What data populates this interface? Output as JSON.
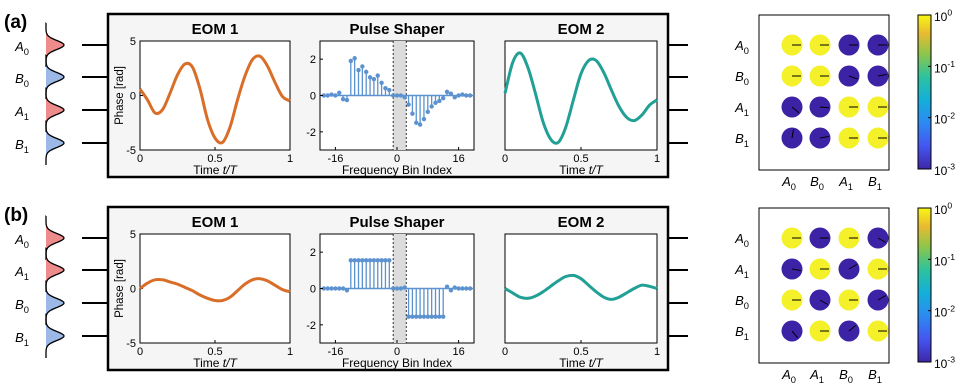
{
  "colors": {
    "eom1": "#D96E28",
    "eom2": "#22A095",
    "shaper": "#5B92CF",
    "pulse_red": "#EE8C8C",
    "pulse_blue": "#9BB8E6",
    "panel_fill": "#F5F5F5",
    "band_fill": "#DCDCDC",
    "dot_high": "#F4F12A",
    "dot_low": "#3C23A6"
  },
  "chart_data": [
    {
      "panel_label": "(a)",
      "pulse_labels": [
        {
          "main": "A",
          "sub": "0"
        },
        {
          "main": "B",
          "sub": "0"
        },
        {
          "main": "A",
          "sub": "1"
        },
        {
          "main": "B",
          "sub": "1"
        }
      ],
      "pulse_colors": [
        "red",
        "blue",
        "red",
        "blue"
      ],
      "eom1": {
        "type": "line",
        "title": "EOM 1",
        "ylabel": "Phase [rad]",
        "xlabel": {
          "main": "Time ",
          "italic": "t/T"
        },
        "xlim": [
          0,
          1
        ],
        "ylim": [
          -5,
          5
        ],
        "xticks": [
          "0",
          "0.5",
          "1"
        ],
        "yticks": [
          "5",
          "0",
          "-5"
        ],
        "x": [
          0,
          0.05,
          0.1,
          0.15,
          0.2,
          0.25,
          0.3,
          0.35,
          0.4,
          0.45,
          0.5,
          0.55,
          0.6,
          0.65,
          0.7,
          0.75,
          0.8,
          0.85,
          0.9,
          0.95,
          1
        ],
        "y": [
          0.6,
          -0.4,
          -1.6,
          -1.3,
          0.2,
          1.9,
          2.9,
          2.6,
          0.6,
          -2.2,
          -3.9,
          -4.3,
          -2.9,
          -0.4,
          1.8,
          3.3,
          3.6,
          2.7,
          1.2,
          -0.1,
          -0.5
        ]
      },
      "shaper": {
        "type": "stem",
        "title": "Pulse Shaper",
        "xlabel": "Frequency Bin Index",
        "xlim": [
          -20,
          20
        ],
        "ylim": [
          -3,
          3
        ],
        "xticks": [
          "-16",
          "0",
          "16"
        ],
        "yticks": [
          "2",
          "0",
          "-2"
        ],
        "band": [
          -1,
          2.4
        ],
        "x": [
          -19,
          -18,
          -17,
          -16,
          -15,
          -14,
          -13,
          -12,
          -11,
          -10,
          -9,
          -8,
          -7,
          -6,
          -5,
          -4,
          -3,
          -2,
          -1,
          0,
          1,
          2,
          3,
          4,
          5,
          6,
          7,
          8,
          9,
          10,
          11,
          12,
          13,
          14,
          15,
          16,
          17,
          18,
          19
        ],
        "y": [
          0,
          0,
          0.05,
          0,
          0.15,
          -0.2,
          -0.25,
          1.9,
          2.05,
          1.4,
          1.6,
          1.3,
          1.0,
          0.9,
          1.1,
          0.7,
          0.4,
          0.3,
          0,
          0,
          0,
          -0.1,
          -0.5,
          -1.0,
          -1.5,
          -1.6,
          -1.3,
          -0.9,
          -0.6,
          -0.4,
          -0.3,
          -0.15,
          0.2,
          0.1,
          -0.1,
          0,
          0.05,
          0,
          0
        ]
      },
      "eom2": {
        "type": "line",
        "title": "EOM 2",
        "xlabel": {
          "main": "Time ",
          "italic": "t/T"
        },
        "xlim": [
          0,
          1
        ],
        "ylim": [
          -5,
          5
        ],
        "xticks": [
          "0",
          "0.5",
          "1"
        ],
        "x": [
          0,
          0.05,
          0.1,
          0.15,
          0.2,
          0.25,
          0.3,
          0.35,
          0.4,
          0.45,
          0.5,
          0.55,
          0.6,
          0.65,
          0.7,
          0.75,
          0.8,
          0.85,
          0.9,
          0.95,
          1
        ],
        "y": [
          0.2,
          3.0,
          3.9,
          2.6,
          0.2,
          -2.4,
          -4.0,
          -4.3,
          -2.9,
          -0.4,
          2.0,
          3.2,
          3.2,
          2.1,
          0.5,
          -1.0,
          -2.0,
          -2.3,
          -1.8,
          -0.9,
          -0.4
        ]
      },
      "matrix": {
        "type": "heatmap",
        "row_labels": [
          {
            "main": "A",
            "sub": "0"
          },
          {
            "main": "B",
            "sub": "0"
          },
          {
            "main": "A",
            "sub": "1"
          },
          {
            "main": "B",
            "sub": "1"
          }
        ],
        "col_labels": [
          {
            "main": "A",
            "sub": "0"
          },
          {
            "main": "B",
            "sub": "0"
          },
          {
            "main": "A",
            "sub": "1"
          },
          {
            "main": "B",
            "sub": "1"
          }
        ],
        "values": [
          [
            "high",
            "high",
            "low",
            "low"
          ],
          [
            "high",
            "high",
            "low",
            "low"
          ],
          [
            "low",
            "low",
            "high",
            "high"
          ],
          [
            "low",
            "low",
            "high",
            "high"
          ]
        ],
        "phases_deg": [
          [
            180,
            180,
            180,
            180
          ],
          [
            180,
            180,
            160,
            190
          ],
          [
            140,
            175,
            180,
            180
          ],
          [
            260,
            190,
            180,
            180
          ]
        ]
      },
      "colorbar": {
        "scale": "log",
        "range": [
          0.001,
          1
        ],
        "ticks": [
          {
            "base": "10",
            "exp": "0"
          },
          {
            "base": "10",
            "exp": "-1"
          },
          {
            "base": "10",
            "exp": "-2"
          },
          {
            "base": "10",
            "exp": "-3"
          }
        ]
      }
    },
    {
      "panel_label": "(b)",
      "pulse_labels": [
        {
          "main": "A",
          "sub": "0"
        },
        {
          "main": "A",
          "sub": "1"
        },
        {
          "main": "B",
          "sub": "0"
        },
        {
          "main": "B",
          "sub": "1"
        }
      ],
      "pulse_colors": [
        "red",
        "red",
        "blue",
        "blue"
      ],
      "eom1": {
        "type": "line",
        "title": "EOM 1",
        "ylabel": "Phase [rad]",
        "xlabel": {
          "main": "Time ",
          "italic": "t/T"
        },
        "xlim": [
          0,
          1
        ],
        "ylim": [
          -5,
          5
        ],
        "xticks": [
          "0",
          "0.5",
          "1"
        ],
        "yticks": [
          "5",
          "0",
          "-5"
        ],
        "x": [
          0,
          0.05,
          0.1,
          0.15,
          0.2,
          0.25,
          0.3,
          0.35,
          0.4,
          0.45,
          0.5,
          0.55,
          0.6,
          0.65,
          0.7,
          0.75,
          0.8,
          0.85,
          0.9,
          0.95,
          1
        ],
        "y": [
          0,
          0.5,
          0.8,
          0.8,
          0.6,
          0.4,
          0.1,
          -0.2,
          -0.6,
          -0.9,
          -1.1,
          -1.1,
          -0.8,
          -0.2,
          0.4,
          0.8,
          0.9,
          0.7,
          0.3,
          -0.1,
          -0.3
        ]
      },
      "shaper": {
        "type": "stem",
        "title": "Pulse Shaper",
        "xlabel": "Frequency Bin Index",
        "xlim": [
          -20,
          20
        ],
        "ylim": [
          -3,
          3
        ],
        "xticks": [
          "-16",
          "0",
          "16"
        ],
        "yticks": [
          "2",
          "0",
          "-2"
        ],
        "band": [
          -1,
          2.4
        ],
        "x": [
          -19,
          -18,
          -17,
          -16,
          -15,
          -14,
          -13,
          -12,
          -11,
          -10,
          -9,
          -8,
          -7,
          -6,
          -5,
          -4,
          -3,
          -2,
          -1,
          0,
          1,
          2,
          3,
          4,
          5,
          6,
          7,
          8,
          9,
          10,
          11,
          12,
          13,
          14,
          15,
          16,
          17,
          18,
          19
        ],
        "y": [
          0,
          0,
          0,
          0,
          0,
          0,
          -0.1,
          1.55,
          1.55,
          1.55,
          1.55,
          1.55,
          1.55,
          1.55,
          1.55,
          1.55,
          1.55,
          1.55,
          0,
          0,
          0,
          0.05,
          -1.55,
          -1.55,
          -1.55,
          -1.55,
          -1.55,
          -1.55,
          -1.55,
          -1.55,
          -1.55,
          -1.55,
          0.1,
          -0.1,
          0.05,
          0,
          0,
          0,
          0
        ]
      },
      "eom2": {
        "type": "line",
        "title": "EOM 2",
        "xlabel": {
          "main": "Time ",
          "italic": "t/T"
        },
        "xlim": [
          0,
          1
        ],
        "ylim": [
          -5,
          5
        ],
        "xticks": [
          "0",
          "0.5",
          "1"
        ],
        "x": [
          0,
          0.05,
          0.1,
          0.15,
          0.2,
          0.25,
          0.3,
          0.35,
          0.4,
          0.45,
          0.5,
          0.55,
          0.6,
          0.65,
          0.7,
          0.75,
          0.8,
          0.85,
          0.9,
          0.95,
          1
        ],
        "y": [
          0,
          -0.4,
          -0.8,
          -0.9,
          -0.7,
          -0.3,
          0.2,
          0.7,
          1.1,
          1.2,
          0.9,
          0.3,
          -0.3,
          -0.8,
          -1.0,
          -0.8,
          -0.4,
          0,
          0.3,
          0.2,
          0
        ]
      },
      "matrix": {
        "type": "heatmap",
        "row_labels": [
          {
            "main": "A",
            "sub": "0"
          },
          {
            "main": "A",
            "sub": "1"
          },
          {
            "main": "B",
            "sub": "0"
          },
          {
            "main": "B",
            "sub": "1"
          }
        ],
        "col_labels": [
          {
            "main": "A",
            "sub": "0"
          },
          {
            "main": "A",
            "sub": "1"
          },
          {
            "main": "B",
            "sub": "0"
          },
          {
            "main": "B",
            "sub": "1"
          }
        ],
        "values": [
          [
            "high",
            "low",
            "high",
            "low"
          ],
          [
            "low",
            "high",
            "low",
            "high"
          ],
          [
            "high",
            "low",
            "high",
            "low"
          ],
          [
            "low",
            "high",
            "low",
            "high"
          ]
        ],
        "phases_deg": [
          [
            180,
            180,
            180,
            150
          ],
          [
            170,
            180,
            210,
            180
          ],
          [
            180,
            150,
            180,
            210
          ],
          [
            130,
            180,
            220,
            180
          ]
        ]
      },
      "colorbar": {
        "scale": "log",
        "range": [
          0.001,
          1
        ],
        "ticks": [
          {
            "base": "10",
            "exp": "0"
          },
          {
            "base": "10",
            "exp": "-1"
          },
          {
            "base": "10",
            "exp": "-2"
          },
          {
            "base": "10",
            "exp": "-3"
          }
        ]
      }
    }
  ]
}
